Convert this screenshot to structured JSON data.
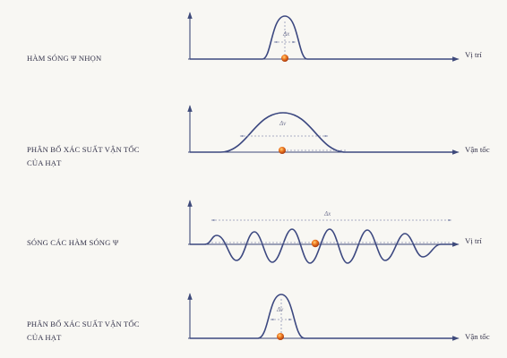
{
  "rows": [
    {
      "id": "sharp-wave",
      "label": "HÀM SÓNG Ψ NHỌN",
      "axis": "Vị trí",
      "spread_label": "Δx",
      "wave_type": "narrow-pulse",
      "particle_color": "#e06a1c"
    },
    {
      "id": "velocity-distribution-wide",
      "label": "PHÂN BỐ XÁC SUẤT VẬN TỐC CỦA HẠT",
      "axis": "Vận tốc",
      "spread_label": "Δv",
      "wave_type": "wide-bump",
      "particle_color": "#e06a1c"
    },
    {
      "id": "wave-train",
      "label": "SÓNG CÁC HÀM SÓNG Ψ",
      "axis": "Vị trí",
      "spread_label": "Δx",
      "wave_type": "oscillating-train",
      "particle_color": "#e06a1c"
    },
    {
      "id": "velocity-distribution-narrow",
      "label": "PHÂN BỐ XÁC SUẤT VẬN TỐC CỦA HẠT",
      "axis": "Vận tốc",
      "spread_label": "Δv",
      "wave_type": "narrow-pulse",
      "particle_color": "#e06a1c"
    }
  ],
  "colors": {
    "wave": "#3c4880",
    "axis": "#3e4a7a",
    "dashed_guides": "#9096b4",
    "particle": "#e06a1c",
    "background": "#f8f7f3"
  }
}
